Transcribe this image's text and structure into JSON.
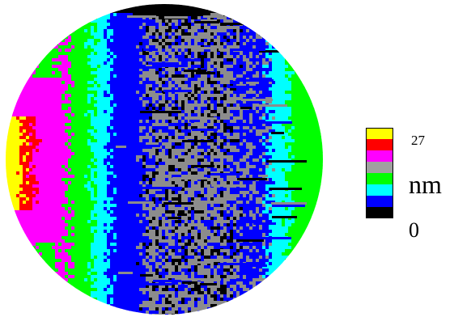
{
  "legend": {
    "max_label": "27",
    "min_label": "0",
    "unit": "nm",
    "colors": [
      "#ffff00",
      "#ff0000",
      "#ff00ff",
      "#a0a0a0",
      "#00ff00",
      "#00ffff",
      "#0000ff",
      "#000000"
    ]
  },
  "map": {
    "palette": {
      "yellow": "#ffff00",
      "red": "#ff0000",
      "magenta": "#ff00ff",
      "gray": "#8c8c8c",
      "green": "#00ff00",
      "cyan": "#00ffff",
      "blue": "#0000ff",
      "black": "#000000"
    }
  }
}
